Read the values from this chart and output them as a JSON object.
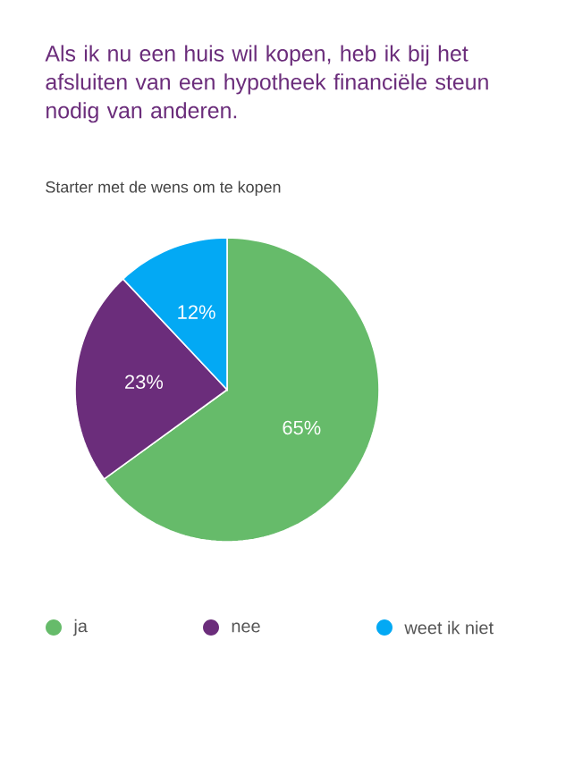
{
  "chart_data": {
    "type": "pie",
    "title": "Als ik nu een huis wil kopen, heb ik bij het afsluiten van een hypotheek financiële steun nodig van anderen.",
    "subtitle": "Starter met de wens om te kopen",
    "categories": [
      "ja",
      "nee",
      "weet ik niet"
    ],
    "values": [
      65,
      23,
      12
    ],
    "colors": [
      "#66bb6a",
      "#6b2d7b",
      "#03a9f4"
    ],
    "value_labels": [
      "65%",
      "23%",
      "12%"
    ],
    "legend": "bottom"
  }
}
